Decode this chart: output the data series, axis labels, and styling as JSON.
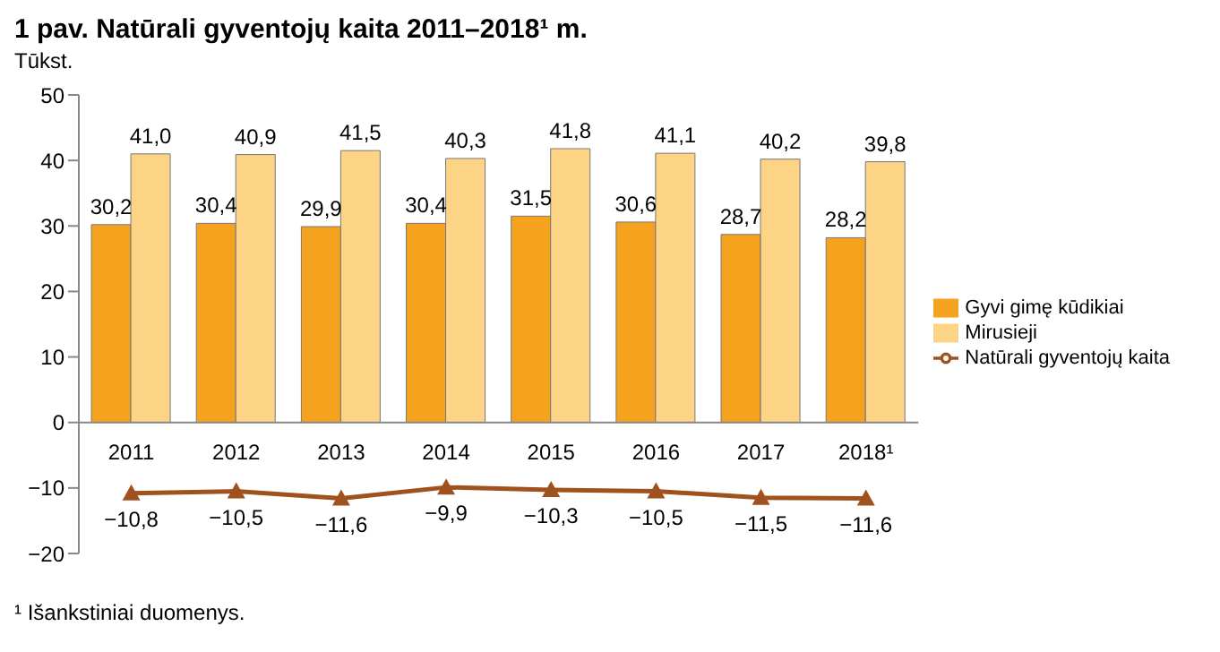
{
  "chart_data": {
    "type": "bar",
    "title": "1 pav. Natūrali gyventojų kaita 2011–2018¹ m.",
    "ylabel": "Tūkst.",
    "annotations": [
      "¹ Išankstiniai duomenys."
    ],
    "categories": [
      "2011",
      "2012",
      "2013",
      "2014",
      "2015",
      "2016",
      "2017",
      "2018¹"
    ],
    "series": [
      {
        "name": "Gyvi gimę kūdikiai",
        "color": "#f5a21f",
        "values": [
          30.2,
          30.4,
          29.9,
          30.4,
          31.5,
          30.6,
          28.7,
          28.2
        ],
        "value_labels": [
          "30,2",
          "30,4",
          "29,9",
          "30,4",
          "31,5",
          "30,6",
          "28,7",
          "28,2"
        ]
      },
      {
        "name": "Mirusieji",
        "color": "#fdd386",
        "values": [
          41.0,
          40.9,
          41.5,
          40.3,
          41.8,
          41.1,
          40.2,
          39.8
        ],
        "value_labels": [
          "41,0",
          "40,9",
          "41,5",
          "40,3",
          "41,8",
          "41,1",
          "40,2",
          "39,8"
        ]
      },
      {
        "name": "Natūrali gyventojų  kaita",
        "type": "line",
        "color": "#a0521e",
        "marker": "triangle",
        "values": [
          -10.8,
          -10.5,
          -11.6,
          -9.9,
          -10.3,
          -10.5,
          -11.5,
          -11.6
        ],
        "value_labels": [
          "−10,8",
          "−10,5",
          "−11,6",
          "−9,9",
          "−10,3",
          "−10,5",
          "−11,5",
          "−11,6"
        ]
      }
    ],
    "ylim": [
      -20,
      50
    ],
    "yticks": [
      {
        "value": -20,
        "label": "−20"
      },
      {
        "value": -10,
        "label": "−10"
      },
      0,
      10,
      20,
      30,
      40,
      50
    ],
    "legend": "right"
  }
}
